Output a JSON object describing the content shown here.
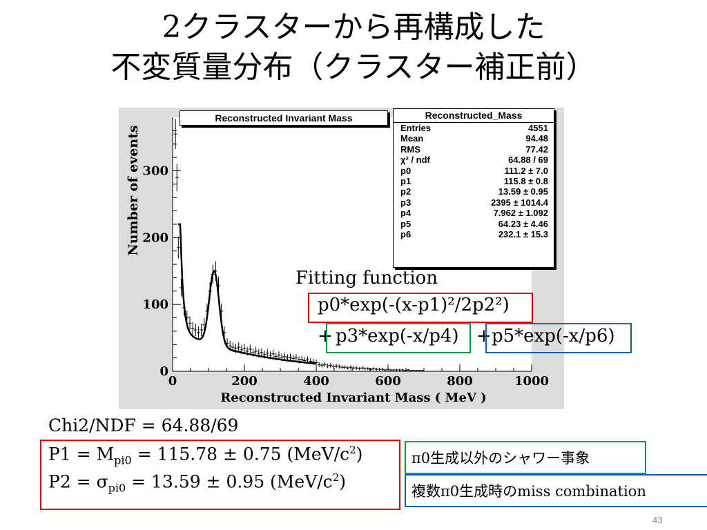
{
  "slide": {
    "title_line1": "2クラスターから再構成した",
    "title_line2": "不変質量分布（クラスター補正前）",
    "page_number": "43"
  },
  "chart_data": {
    "type": "scatter",
    "title": "Reconstructed Invariant Mass",
    "xlabel": "Reconstructed Invariant Mass ( MeV )",
    "ylabel": "Number of events",
    "xlim": [
      0,
      1000
    ],
    "ylim": [
      0,
      380
    ],
    "x_ticks": [
      0,
      200,
      400,
      600,
      800,
      1000
    ],
    "y_ticks": [
      0,
      100,
      200,
      300
    ],
    "y_tick_labels": [
      "0",
      "100",
      "200",
      "300"
    ],
    "x_tick_labels": [
      "0",
      "200",
      "400",
      "600",
      "800",
      "1000"
    ],
    "points": [
      [
        8,
        355
      ],
      [
        12,
        290
      ],
      [
        16,
        185
      ],
      [
        24,
        125
      ],
      [
        32,
        95
      ],
      [
        40,
        80
      ],
      [
        48,
        72
      ],
      [
        56,
        64
      ],
      [
        64,
        62
      ],
      [
        72,
        58
      ],
      [
        80,
        62
      ],
      [
        88,
        70
      ],
      [
        96,
        90
      ],
      [
        104,
        120
      ],
      [
        112,
        145
      ],
      [
        120,
        150
      ],
      [
        128,
        128
      ],
      [
        136,
        90
      ],
      [
        144,
        58
      ],
      [
        152,
        42
      ],
      [
        160,
        38
      ],
      [
        168,
        36
      ],
      [
        176,
        34
      ],
      [
        184,
        36
      ],
      [
        192,
        32
      ],
      [
        200,
        34
      ],
      [
        208,
        30
      ],
      [
        216,
        33
      ],
      [
        224,
        28
      ],
      [
        232,
        30
      ],
      [
        240,
        27
      ],
      [
        248,
        28
      ],
      [
        256,
        25
      ],
      [
        264,
        27
      ],
      [
        272,
        24
      ],
      [
        280,
        26
      ],
      [
        288,
        22
      ],
      [
        296,
        24
      ],
      [
        304,
        21
      ],
      [
        312,
        22
      ],
      [
        320,
        20
      ],
      [
        328,
        21
      ],
      [
        336,
        19
      ],
      [
        344,
        20
      ],
      [
        352,
        17
      ],
      [
        360,
        18
      ],
      [
        368,
        16
      ],
      [
        376,
        17
      ],
      [
        384,
        15
      ],
      [
        392,
        14
      ],
      [
        400,
        13
      ],
      [
        408,
        10
      ],
      [
        416,
        9
      ],
      [
        424,
        10
      ],
      [
        432,
        8
      ],
      [
        440,
        9
      ],
      [
        448,
        7
      ],
      [
        456,
        8
      ],
      [
        464,
        7
      ],
      [
        472,
        6
      ],
      [
        480,
        6
      ],
      [
        488,
        5
      ],
      [
        496,
        6
      ],
      [
        504,
        5
      ],
      [
        512,
        5
      ],
      [
        520,
        4
      ],
      [
        528,
        5
      ],
      [
        536,
        4
      ],
      [
        544,
        4
      ],
      [
        552,
        3
      ],
      [
        560,
        4
      ],
      [
        568,
        3
      ],
      [
        576,
        3
      ],
      [
        584,
        3
      ],
      [
        592,
        2
      ],
      [
        600,
        3
      ],
      [
        608,
        2
      ],
      [
        616,
        2
      ],
      [
        624,
        2
      ],
      [
        632,
        2
      ],
      [
        640,
        2
      ],
      [
        648,
        1
      ],
      [
        656,
        2
      ],
      [
        664,
        1
      ],
      [
        672,
        1
      ],
      [
        680,
        1
      ],
      [
        688,
        1
      ],
      [
        696,
        1
      ]
    ],
    "fit_params": {
      "p0": 111.2,
      "p1": 115.8,
      "p2": 13.59,
      "p3": 2395,
      "p4": 7.962,
      "p5": 64.23,
      "p6": 232.1
    },
    "fit_range": [
      15,
      400
    ],
    "stats": {
      "title": "Reconstructed_Mass",
      "rows": [
        {
          "label": "Entries",
          "value": "4551"
        },
        {
          "label": "Mean",
          "value": "94.48"
        },
        {
          "label": "RMS",
          "value": "77.42"
        },
        {
          "label": "χ² / ndf",
          "value": "64.88 / 69"
        },
        {
          "label": "p0",
          "value": "111.2 ± 7.0"
        },
        {
          "label": "p1",
          "value": "115.8 ± 0.8"
        },
        {
          "label": "p2",
          "value": "13.59 ± 0.95"
        },
        {
          "label": "p3",
          "value": "2395 ± 1014.4"
        },
        {
          "label": "p4",
          "value": "7.962 ± 1.092"
        },
        {
          "label": "p5",
          "value": "64.23 ± 4.46"
        },
        {
          "label": "p6",
          "value": "232.1 ± 15.3"
        }
      ]
    }
  },
  "annotations": {
    "fitting_function_label": "Fitting function",
    "gauss_term": "p0*exp(-(x-p1)²/2p2²)",
    "plus1": "+",
    "exp_term1": "p3*exp(-x/p4)",
    "plus2": "+",
    "exp_term2": "p5*exp(-x/p6)"
  },
  "results": {
    "chi2": "Chi2/NDF = 64.88/69",
    "p1_prefix": "P1 = M",
    "p1_sub": "pi0",
    "p1_value": " = 115.78 ± 0.75 (MeV/c",
    "p1_sup": "2",
    "p1_close": ")",
    "p2_prefix": "P2 = σ",
    "p2_sub": "pi0",
    "p2_value": "  =   13.59 ± 0.95 (MeV/c",
    "p2_sup": "2",
    "p2_close": ")",
    "tag_green": "π0生成以外のシャワー事象",
    "tag_blue": "複数π0生成時のmiss combination"
  },
  "colors": {
    "red_box": "#e00000",
    "green_box": "#00a040",
    "blue_box": "#0060c0"
  }
}
